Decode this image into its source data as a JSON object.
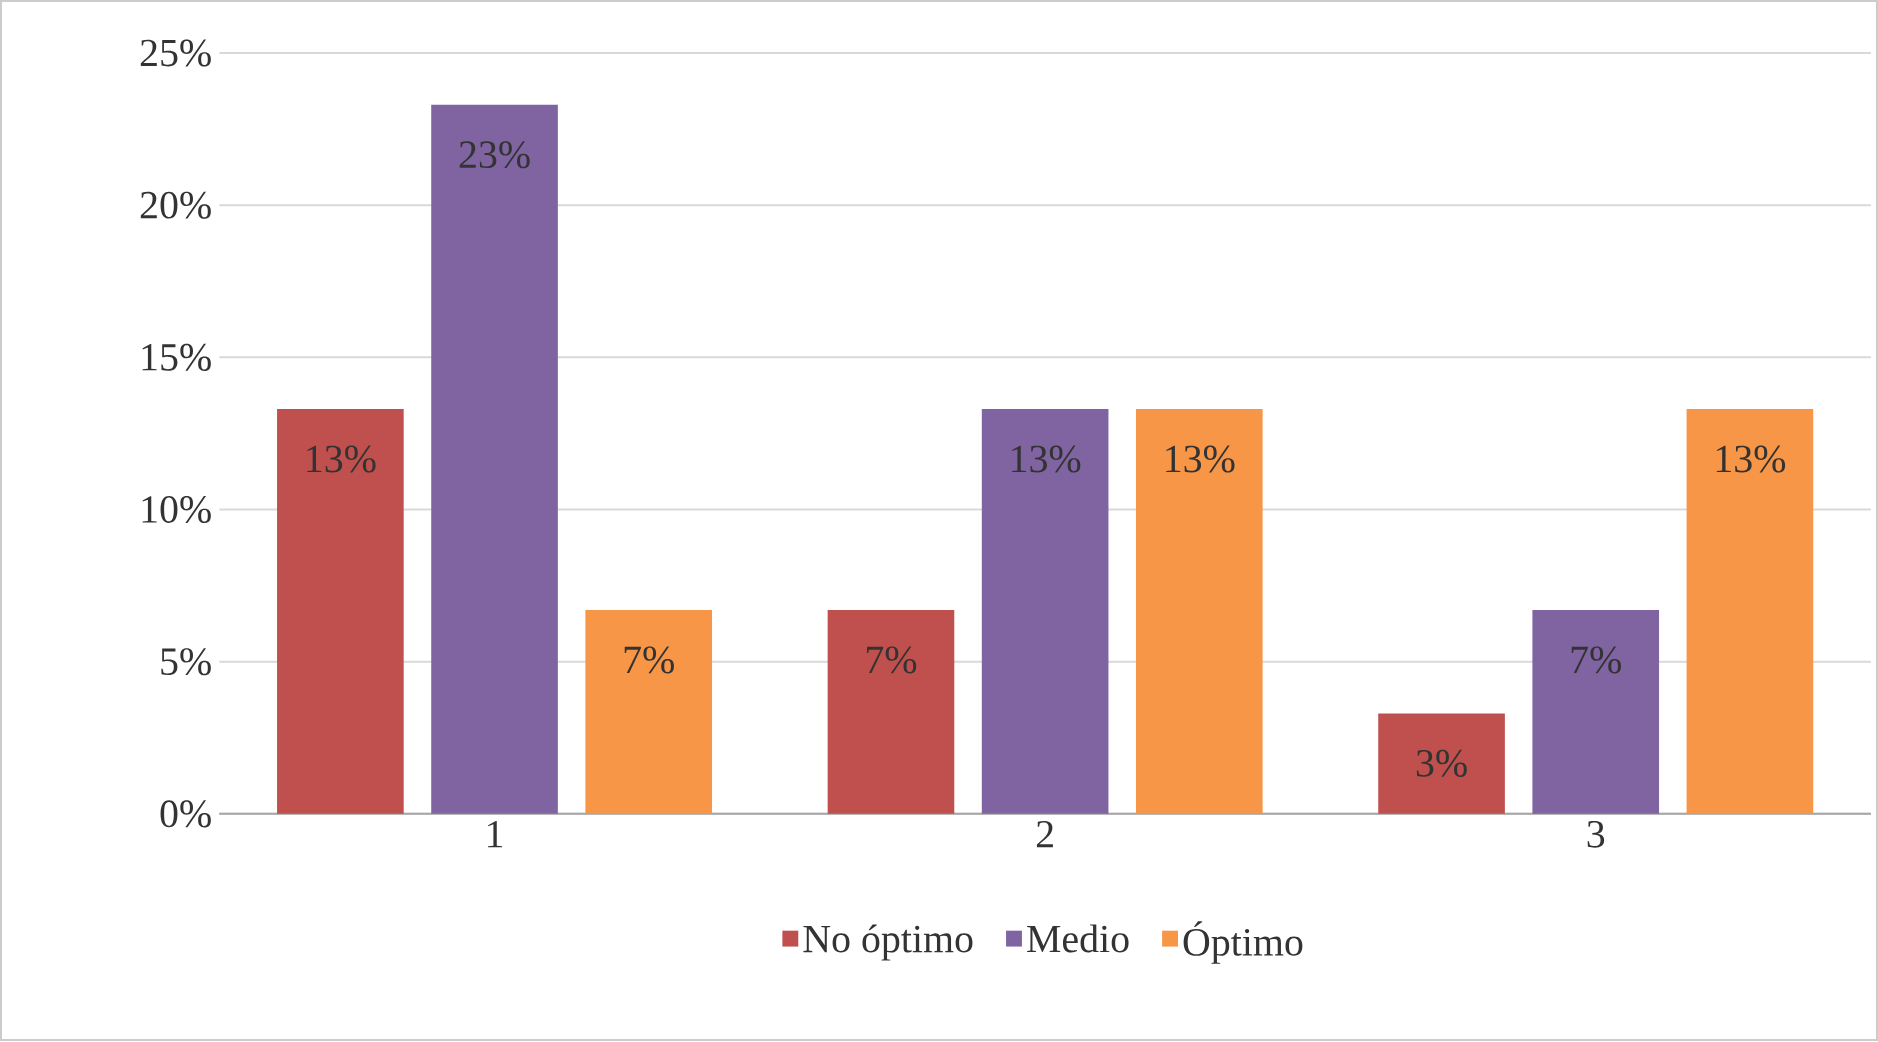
{
  "chart_data": {
    "type": "bar",
    "categories": [
      "1",
      "2",
      "3"
    ],
    "series": [
      {
        "name": "No óptimo",
        "color": "#c0504d",
        "values": [
          13.3,
          6.7,
          3.3
        ],
        "value_labels": [
          "13%",
          "7%",
          "3%"
        ]
      },
      {
        "name": "Medio",
        "color": "#8064a2",
        "values": [
          23.3,
          13.3,
          6.7
        ],
        "value_labels": [
          "23%",
          "13%",
          "7%"
        ]
      },
      {
        "name": "Óptimo",
        "color": "#f79646",
        "values": [
          6.7,
          13.3,
          13.3
        ],
        "value_labels": [
          "7%",
          "13%",
          "13%"
        ]
      }
    ],
    "ylim": [
      0,
      25
    ],
    "yticks": [
      {
        "value": 0,
        "label": "0%"
      },
      {
        "value": 5,
        "label": "5%"
      },
      {
        "value": 10,
        "label": "10%"
      },
      {
        "value": 15,
        "label": "15%"
      },
      {
        "value": 20,
        "label": "20%"
      },
      {
        "value": 25,
        "label": "25%"
      }
    ],
    "grid": "y",
    "legend": "bottom"
  }
}
